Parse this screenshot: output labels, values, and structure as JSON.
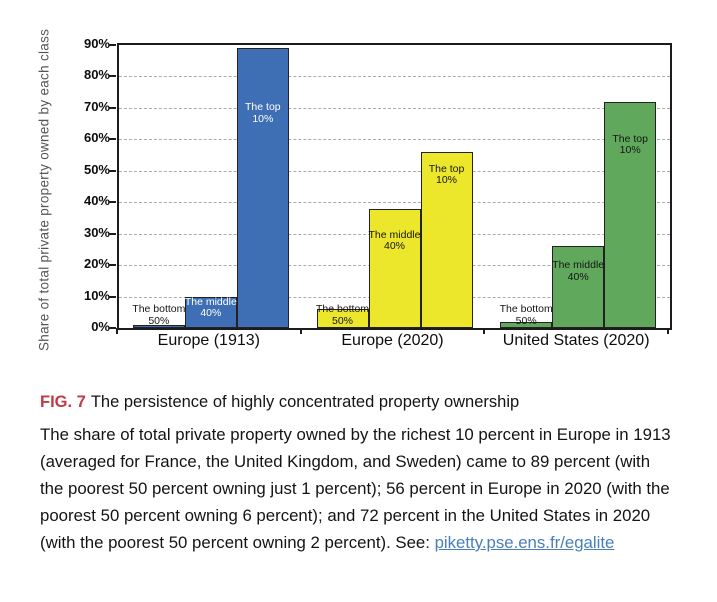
{
  "chart_data": {
    "type": "bar",
    "title": "",
    "ylabel": "Share of total private property owned by each class",
    "ylim": [
      0,
      90
    ],
    "yticks": [
      "0%",
      "10%",
      "20%",
      "30%",
      "40%",
      "50%",
      "60%",
      "70%",
      "80%",
      "90%"
    ],
    "grid": "horizontal-dashed",
    "legend": "none (labels drawn on bars)",
    "categories": [
      "Europe (1913)",
      "Europe (2020)",
      "United States (2020)"
    ],
    "series": [
      {
        "name": "The bottom 50%",
        "values": [
          1,
          6,
          2
        ]
      },
      {
        "name": "The middle 40%",
        "values": [
          10,
          38,
          26
        ]
      },
      {
        "name": "The top 10%",
        "values": [
          89,
          56,
          72
        ]
      }
    ],
    "bar_label_lines": [
      [
        "The bottom",
        "50%"
      ],
      [
        "The middle",
        "40%"
      ],
      [
        "The top",
        "10%"
      ]
    ],
    "group_colors": [
      "#3e6fb5",
      "#ece72b",
      "#5fa85c"
    ]
  },
  "figure": {
    "tag": "FIG. 7",
    "title": "The persistence of highly concentrated property ownership",
    "body": "The share of total private property owned by the richest 10 percent in Europe in 1913 (averaged for France, the United Kingdom, and Sweden) came to 89 percent (with the poorest 50 percent owning just 1 percent); 56 percent in Europe in 2020 (with the poorest 50 percent owning 6 percent); and 72 percent in the United States in 2020 (with the poorest 50 percent owning 2 percent). See: ",
    "link": "piketty.pse.ens.fr/egalite"
  },
  "colors": {
    "fig_tag_red": "#c13a45",
    "link_blue": "#4a7eba",
    "ylabel_gray": "#555555",
    "gridline_gray": "#ababab",
    "frame_black": "#1c1c1c"
  }
}
